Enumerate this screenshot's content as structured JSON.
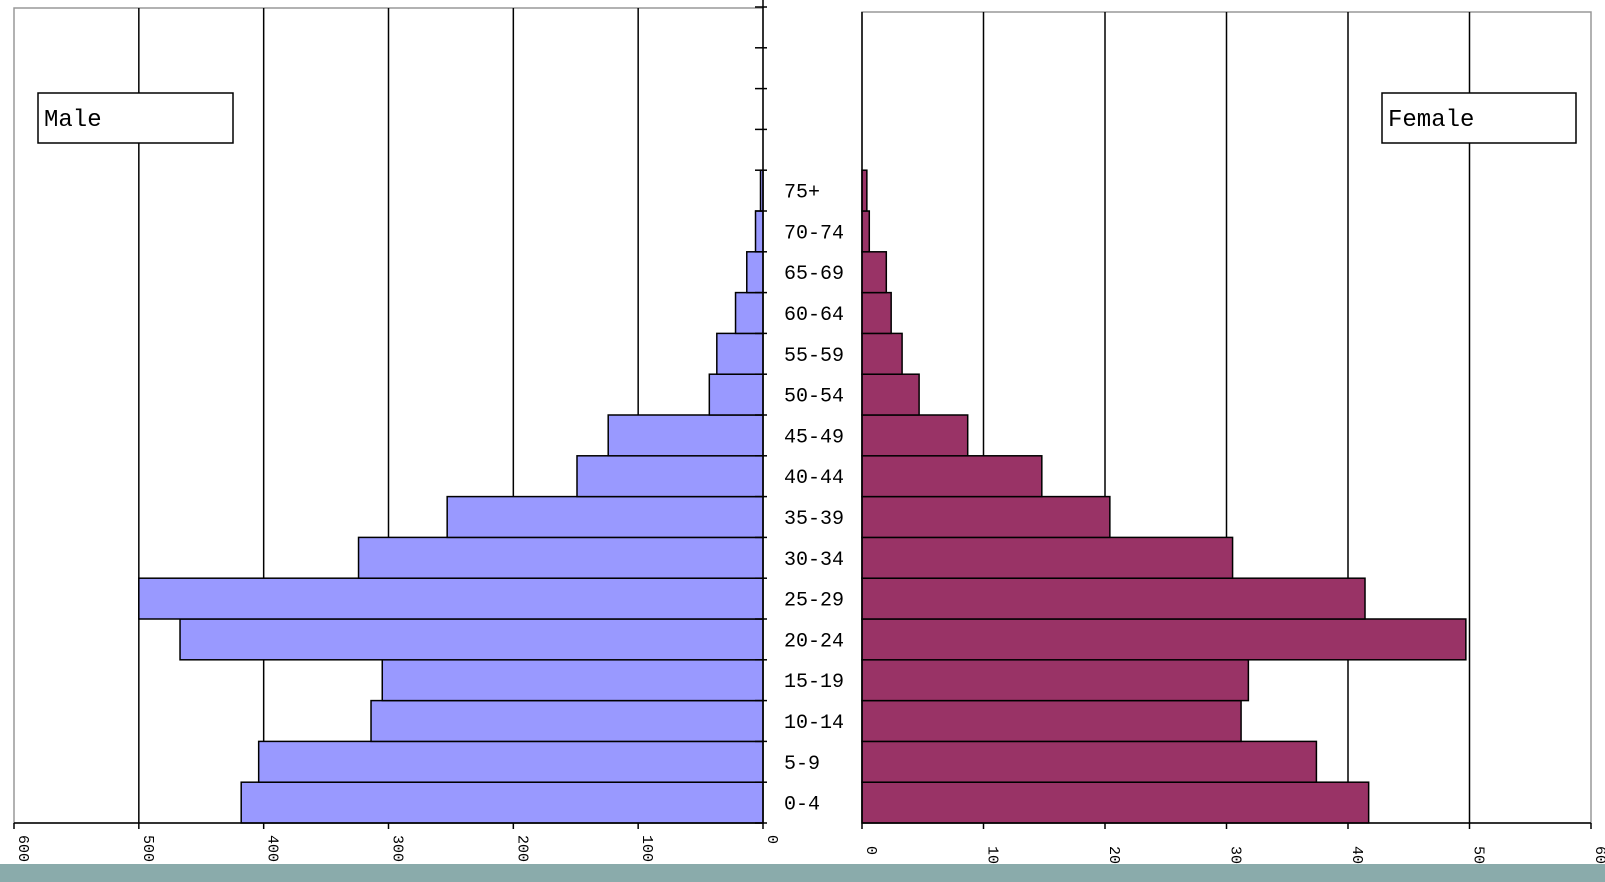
{
  "chart_data": {
    "type": "bar",
    "orientation": "horizontal",
    "layout": "population-pyramid",
    "categories": [
      "0-4",
      "5-9",
      "10-14",
      "15-19",
      "20-24",
      "25-29",
      "30-34",
      "35-39",
      "40-44",
      "45-49",
      "50-54",
      "55-59",
      "60-64",
      "65-69",
      "70-74",
      "75+"
    ],
    "series": [
      {
        "name": "Male",
        "values": [
          418,
          404,
          314,
          305,
          467,
          500,
          324,
          253,
          149,
          124,
          43,
          37,
          22,
          13,
          6,
          2
        ],
        "color": "#9999ff"
      },
      {
        "name": "Female",
        "values": [
          417,
          374,
          312,
          318,
          497,
          414,
          305,
          204,
          148,
          87,
          47,
          33,
          24,
          20,
          6,
          4
        ],
        "color": "#993366"
      }
    ],
    "xlim": [
      0,
      600
    ],
    "xticks": [
      0,
      100,
      200,
      300,
      400,
      500,
      600
    ],
    "grid": true,
    "legend_placement": "in-panel boxes (Male top-left, Female top-right)"
  },
  "legend": {
    "male_label": "Male",
    "female_label": "Female"
  },
  "colors": {
    "male": "#9999ff",
    "female": "#993366",
    "strip": "#8aabab"
  }
}
